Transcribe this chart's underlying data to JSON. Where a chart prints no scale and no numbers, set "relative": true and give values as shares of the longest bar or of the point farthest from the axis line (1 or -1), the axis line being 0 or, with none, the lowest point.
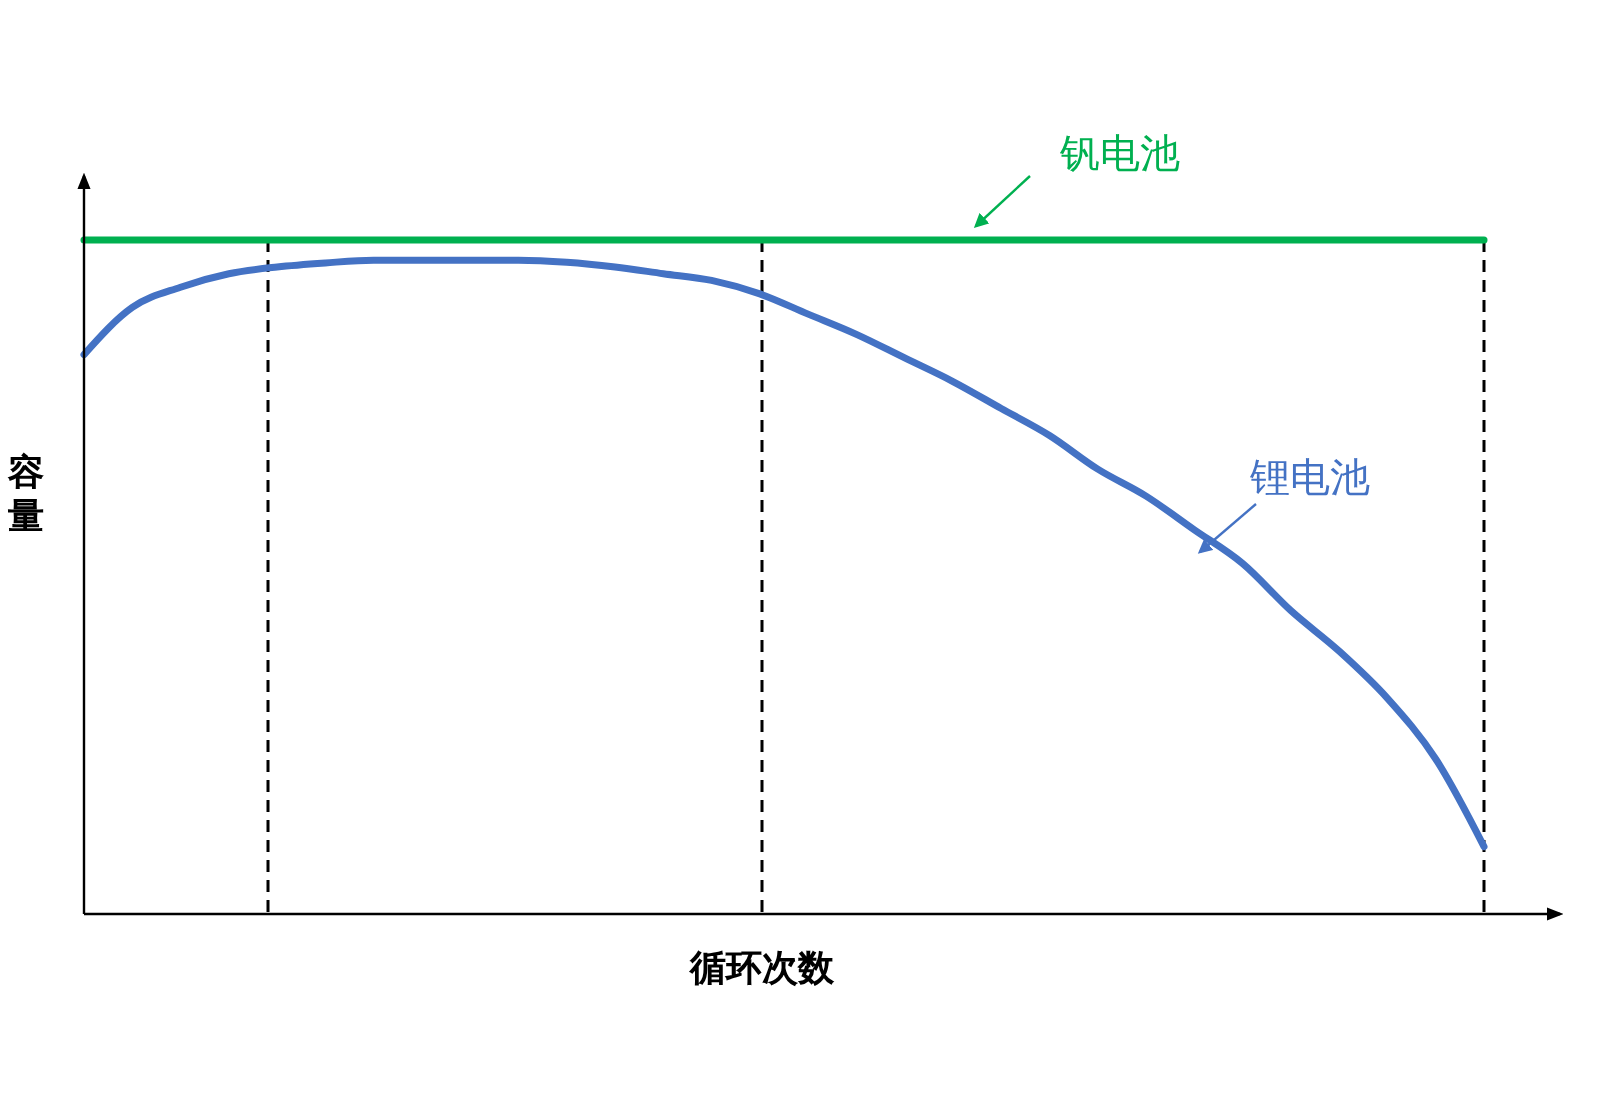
{
  "chart_data": {
    "type": "line",
    "relative": true,
    "xlabel": "循环次数",
    "ylabel": "容量",
    "categories": [
      null,
      null,
      null,
      null,
      null,
      null,
      null,
      null,
      null,
      null,
      null,
      null,
      null,
      null,
      null,
      null,
      null,
      null,
      null,
      null,
      null,
      null,
      null,
      null,
      null,
      null,
      null,
      null,
      null,
      null
    ],
    "series": [
      {
        "name": "钒电池",
        "color": "#00b050",
        "values": [
          1,
          1,
          1,
          1,
          1,
          1,
          1,
          1,
          1,
          1,
          1,
          1,
          1,
          1,
          1,
          1,
          1,
          1,
          1,
          1,
          1,
          1,
          1,
          1,
          1,
          1,
          1,
          1,
          1,
          1
        ]
      },
      {
        "name": "锂电池",
        "color": "#4472c4",
        "values": [
          0.83,
          0.9,
          0.93,
          0.95,
          0.96,
          0.966,
          0.97,
          0.97,
          0.97,
          0.97,
          0.967,
          0.96,
          0.95,
          0.94,
          0.92,
          0.89,
          0.86,
          0.825,
          0.79,
          0.75,
          0.71,
          0.66,
          0.62,
          0.57,
          0.52,
          0.45,
          0.39,
          0.32,
          0.23,
          0.1
        ]
      }
    ],
    "line_style": "solid"
  }
}
